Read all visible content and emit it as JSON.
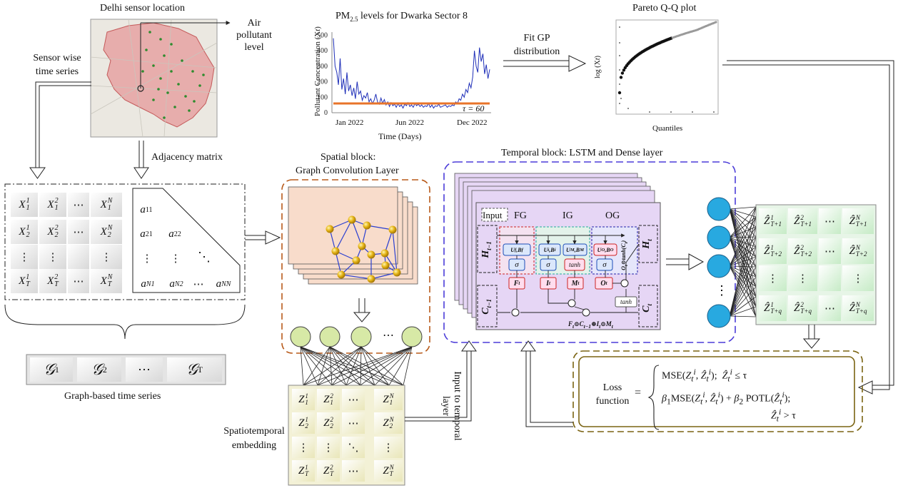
{
  "colors": {
    "map_bg": "#e9e6df",
    "map_region": "#e69a9a",
    "sensor_dot": "#2e8b2e",
    "pm_line": "#1f2fb8",
    "threshold_line": "#e8742a",
    "spatial_border": "#b85a1a",
    "spatial_card": "#f8dccb",
    "temporal_border": "#4b3cd8",
    "temporal_card": "#e6d6f5",
    "node_fill": "#d7e9a6",
    "dense_node": "#28a9e0",
    "loss_border": "#7a6312",
    "matrix_green": "#d8f0d8"
  },
  "map": {
    "title": "Delhi sensor location"
  },
  "labels": {
    "air_pollutant": "Air pollutant level",
    "sensor_wise": "Sensor wise time series",
    "adjacency": "Adjacency matrix",
    "fit_gp": "Fit GP distribution",
    "graph_ts": "Graph-based time series",
    "spatial_title_1": "Spatial block:",
    "spatial_title_2": "Graph Convolution Layer",
    "temporal_title": "Temporal block: LSTM and Dense layer",
    "st_embedding": "Spatiotemporal embedding",
    "input_temporal": "Input to temporal layer",
    "loss_function": "Loss function"
  },
  "pm_chart": {
    "title_pre": "PM",
    "title_sub": "2.5",
    "title_post": " levels for Dwarka Sector 8",
    "ylabel": "Pollutant Concentration (X",
    "xlabel": "Time (Days)",
    "tau_label": "τ = 60"
  },
  "chart_data": [
    {
      "type": "line",
      "title": "PM2.5 levels for Dwarka Sector 8",
      "xlabel": "Time (Days)",
      "ylabel": "Pollutant Concentration (X_t^i)",
      "x_ticks": [
        "Jan 2022",
        "Jun 2022",
        "Dec 2022"
      ],
      "y_ticks": [
        0,
        100,
        200,
        300,
        400,
        500
      ],
      "ylim": [
        0,
        520
      ],
      "threshold": 60,
      "series": [
        {
          "values": [
            480,
            300,
            260,
            180,
            350,
            150,
            220,
            120,
            260,
            140,
            180,
            110,
            160,
            90,
            200,
            120,
            140,
            80,
            110,
            95,
            130,
            70,
            90,
            60,
            80,
            120,
            70,
            55,
            95,
            60,
            85,
            50,
            70,
            40,
            65,
            45,
            55,
            35,
            60,
            40,
            50,
            30,
            55,
            45,
            65,
            40,
            50,
            35,
            60,
            45,
            55,
            40,
            50,
            35,
            45,
            40,
            60,
            35,
            50,
            30,
            45,
            40,
            55,
            35,
            40,
            45,
            50,
            35,
            45,
            40,
            50,
            45,
            70,
            60,
            90,
            80,
            120,
            100,
            150,
            130,
            190,
            160,
            230,
            400,
            300,
            260,
            420,
            330,
            380,
            250,
            310,
            220,
            280
          ]
        }
      ]
    },
    {
      "type": "scatter",
      "title": "Pareto Q-Q plot",
      "xlabel": "Quantiles",
      "ylabel": "log (X_t^i)"
    }
  ],
  "qq": {
    "title": "Pareto Q-Q plot",
    "xlabel": "Quantiles",
    "ylabel": "log (X"
  },
  "input_matrix": {
    "rows": [
      [
        "X",
        "X",
        "⋯",
        "X"
      ],
      [
        "X",
        "X",
        "⋯",
        "X"
      ],
      [
        "⋮",
        "⋮",
        "",
        "⋮"
      ],
      [
        "X",
        "X",
        "⋯",
        "X"
      ]
    ],
    "subs": [
      [
        "1",
        "1",
        "",
        "1"
      ],
      [
        "2",
        "2",
        "",
        "2"
      ],
      [
        "",
        "",
        "",
        ""
      ],
      [
        "T",
        "T",
        "",
        "T"
      ]
    ],
    "sups": [
      [
        "1",
        "2",
        "",
        "N"
      ],
      [
        "1",
        "2",
        "",
        "N"
      ],
      [
        "",
        "",
        "",
        ""
      ],
      [
        "1",
        "2",
        "",
        "N"
      ]
    ]
  },
  "adjacency_matrix": {
    "r1": [
      "a11"
    ],
    "r2": [
      "a21",
      "a22"
    ],
    "r3": [
      "⋮",
      "⋮",
      "⋱"
    ],
    "r4": [
      "aN1",
      "aN2",
      "⋯",
      "aNN"
    ]
  },
  "graph_series": {
    "g1": "𝒢",
    "s1": "1",
    "g2": "𝒢",
    "s2": "2",
    "dots": "⋯",
    "gT": "𝒢",
    "sT": "T"
  },
  "embedding_dots": "⋯",
  "lstm": {
    "input": "Input",
    "fg": "FG",
    "ig": "IG",
    "og": "OG",
    "h_prev": "H",
    "h_prev_sub": "t−1",
    "c_prev": "C",
    "c_prev_sub": "t−1",
    "h_t": "H",
    "h_t_sub": "t",
    "c_t": "C",
    "c_t_sub": "t",
    "uf": "U",
    "ui": "U",
    "um": "U",
    "uo": "U",
    "sigma": "σ",
    "tanh": "tanh",
    "ft": "F",
    "it": "I",
    "mt": "M",
    "ot": "O",
    "ct_eq": "F",
    "ot_tanh": "O"
  },
  "output_matrix": {
    "hat": "Ẑ",
    "dots": "⋯",
    "vdots": "⋮"
  },
  "loss": {
    "case1": "MSE(",
    "case1_cond": "≤ τ",
    "case2": "MSE(",
    "potl": "POTL(",
    "case2_cond": "> τ",
    "beta1": "β",
    "beta2": "β",
    "eq": "="
  }
}
